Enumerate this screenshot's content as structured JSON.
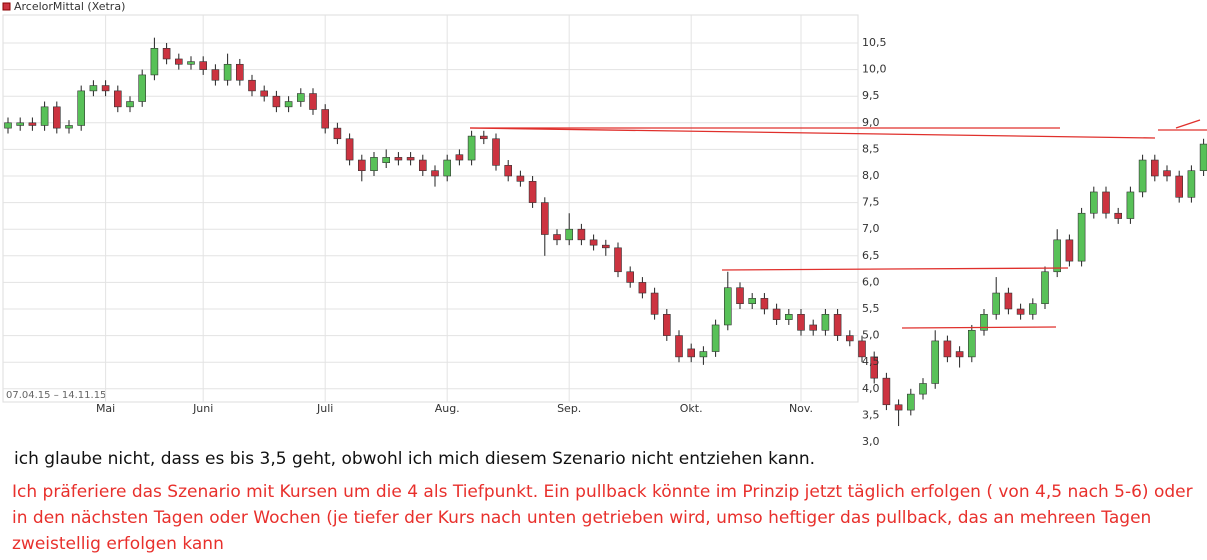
{
  "chart_data": {
    "type": "candlestick",
    "title": "ArcelorMittal (Xetra)",
    "date_range": "07.04.15 – 14.11.15",
    "categories": [
      null,
      null,
      null,
      null,
      null,
      null,
      null,
      null,
      "Mai",
      null,
      null,
      null,
      null,
      null,
      null,
      null,
      "Juni",
      null,
      null,
      null,
      null,
      null,
      null,
      null,
      null,
      null,
      "Juli",
      null,
      null,
      null,
      null,
      null,
      null,
      null,
      null,
      null,
      "Aug.",
      null,
      null,
      null,
      null,
      null,
      null,
      null,
      null,
      null,
      "Sep.",
      null,
      null,
      null,
      null,
      null,
      null,
      null,
      null,
      null,
      "Okt.",
      null,
      null,
      null,
      null,
      null,
      null,
      null,
      null,
      "Nov.",
      null,
      null,
      null,
      null,
      null,
      null,
      null,
      null,
      null,
      null,
      null,
      null,
      null,
      null,
      null,
      null,
      null,
      null,
      null,
      null,
      null,
      null,
      null,
      null,
      null,
      null,
      null,
      null,
      null,
      null,
      null,
      null,
      null
    ],
    "open": [
      8.9,
      8.95,
      9.0,
      8.95,
      9.3,
      8.9,
      8.95,
      9.6,
      9.7,
      9.6,
      9.3,
      9.4,
      9.9,
      10.4,
      10.2,
      10.1,
      10.15,
      10.0,
      9.8,
      10.1,
      9.8,
      9.6,
      9.5,
      9.3,
      9.4,
      9.55,
      9.25,
      8.9,
      8.7,
      8.3,
      8.1,
      8.25,
      8.35,
      8.35,
      8.3,
      8.1,
      8.0,
      8.4,
      8.3,
      8.75,
      8.7,
      8.2,
      8.0,
      7.9,
      7.5,
      6.9,
      6.8,
      7.0,
      6.8,
      6.7,
      6.65,
      6.2,
      6.0,
      5.8,
      5.4,
      5.0,
      4.75,
      4.6,
      4.7,
      5.2,
      5.9,
      5.6,
      5.7,
      5.5,
      5.3,
      5.4,
      5.2,
      5.1,
      5.4,
      5.0,
      4.9,
      4.6,
      4.2,
      3.7,
      3.6,
      3.9,
      4.1,
      4.9,
      4.7,
      4.6,
      5.1,
      5.4,
      5.8,
      5.5,
      5.4,
      5.6,
      6.2,
      6.8,
      6.4,
      7.3,
      7.7,
      7.3,
      7.2,
      7.7,
      8.3,
      8.1,
      8.0,
      7.6,
      8.1
    ],
    "high": [
      9.1,
      9.1,
      9.1,
      9.4,
      9.4,
      9.05,
      9.7,
      9.8,
      9.8,
      9.7,
      9.5,
      10.0,
      10.6,
      10.5,
      10.3,
      10.25,
      10.25,
      10.1,
      10.3,
      10.2,
      9.9,
      9.7,
      9.6,
      9.5,
      9.65,
      9.65,
      9.35,
      9.0,
      8.8,
      8.4,
      8.45,
      8.5,
      8.45,
      8.45,
      8.4,
      8.2,
      8.4,
      8.5,
      8.85,
      8.85,
      8.8,
      8.3,
      8.1,
      8.0,
      7.6,
      7.0,
      7.3,
      7.1,
      6.9,
      6.8,
      6.75,
      6.3,
      6.1,
      5.9,
      5.5,
      5.1,
      4.85,
      4.8,
      5.3,
      6.2,
      6.0,
      5.8,
      5.8,
      5.6,
      5.5,
      5.5,
      5.3,
      5.5,
      5.5,
      5.1,
      5.0,
      4.7,
      4.3,
      3.8,
      4.0,
      4.2,
      5.1,
      5.0,
      4.8,
      5.2,
      5.5,
      6.1,
      5.9,
      5.6,
      5.7,
      6.3,
      7.0,
      6.9,
      7.4,
      7.8,
      7.8,
      7.4,
      7.8,
      8.4,
      8.4,
      8.2,
      8.1,
      8.2,
      8.7
    ],
    "low": [
      8.8,
      8.85,
      8.85,
      8.85,
      8.8,
      8.8,
      8.85,
      9.5,
      9.5,
      9.2,
      9.2,
      9.3,
      9.8,
      10.1,
      10.0,
      10.0,
      9.9,
      9.7,
      9.7,
      9.7,
      9.5,
      9.4,
      9.2,
      9.2,
      9.3,
      9.15,
      8.8,
      8.6,
      8.2,
      7.9,
      8.0,
      8.15,
      8.2,
      8.2,
      8.0,
      7.8,
      7.9,
      8.2,
      8.2,
      8.6,
      8.1,
      7.9,
      7.8,
      7.4,
      6.5,
      6.7,
      6.7,
      6.7,
      6.6,
      6.5,
      6.1,
      5.9,
      5.7,
      5.3,
      4.9,
      4.5,
      4.5,
      4.45,
      4.6,
      5.1,
      5.5,
      5.5,
      5.4,
      5.2,
      5.2,
      5.0,
      5.0,
      5.0,
      4.9,
      4.8,
      4.5,
      4.1,
      3.6,
      3.3,
      3.5,
      3.8,
      4.0,
      4.5,
      4.4,
      4.5,
      5.0,
      5.3,
      5.4,
      5.3,
      5.3,
      5.5,
      6.1,
      6.3,
      6.3,
      7.2,
      7.2,
      7.1,
      7.1,
      7.6,
      7.9,
      7.9,
      7.5,
      7.5,
      8.0
    ],
    "close": [
      9.0,
      9.0,
      8.95,
      9.3,
      8.9,
      8.95,
      9.6,
      9.7,
      9.6,
      9.3,
      9.4,
      9.9,
      10.4,
      10.2,
      10.1,
      10.15,
      10.0,
      9.8,
      10.1,
      9.8,
      9.6,
      9.5,
      9.3,
      9.4,
      9.55,
      9.25,
      8.9,
      8.7,
      8.3,
      8.1,
      8.35,
      8.35,
      8.3,
      8.3,
      8.1,
      8.0,
      8.3,
      8.3,
      8.75,
      8.7,
      8.2,
      8.0,
      7.9,
      7.5,
      6.9,
      6.8,
      7.0,
      6.8,
      6.7,
      6.65,
      6.2,
      6.0,
      5.8,
      5.4,
      5.0,
      4.6,
      4.6,
      4.7,
      5.2,
      5.9,
      5.6,
      5.7,
      5.5,
      5.3,
      5.4,
      5.1,
      5.1,
      5.4,
      5.0,
      4.9,
      4.6,
      4.2,
      3.7,
      3.6,
      3.9,
      4.1,
      4.9,
      4.6,
      4.6,
      5.1,
      5.4,
      5.8,
      5.5,
      5.4,
      5.6,
      6.2,
      6.8,
      6.4,
      7.3,
      7.7,
      7.3,
      7.2,
      7.7,
      8.3,
      8.0,
      8.0,
      7.6,
      8.1,
      8.6
    ],
    "up_color": "#58c158",
    "down_color": "#cc3340",
    "ylim": [
      3.0,
      11.0
    ],
    "yticks": [
      {
        "value": 3.0,
        "label": "3,0"
      },
      {
        "value": 3.5,
        "label": "3,5"
      },
      {
        "value": 4.0,
        "label": "4,0"
      },
      {
        "value": 4.5,
        "label": "4,5"
      },
      {
        "value": 5.0,
        "label": "5,0"
      },
      {
        "value": 5.5,
        "label": "5,5"
      },
      {
        "value": 6.0,
        "label": "6,0"
      },
      {
        "value": 6.5,
        "label": "6,5"
      },
      {
        "value": 7.0,
        "label": "7,0"
      },
      {
        "value": 7.5,
        "label": "7,5"
      },
      {
        "value": 8.0,
        "label": "8,0"
      },
      {
        "value": 8.5,
        "label": "8,5"
      },
      {
        "value": 9.0,
        "label": "9,0"
      },
      {
        "value": 9.5,
        "label": "9,5"
      },
      {
        "value": 10.0,
        "label": "10,0"
      },
      {
        "value": 10.5,
        "label": "10,5"
      }
    ],
    "grid": true
  },
  "comments": [
    "ich glaube nicht, dass es bis 3,5 geht, obwohl ich mich diesem Szenario nicht entziehen kann.",
    "Ich präferiere das Szenario mit Kursen um die 4 als Tiefpunkt. Ein pullback könnte im Prinzip jetzt täglich erfolgen ( von 4,5 nach 5-6) oder in den nächsten Tagen oder Wochen (je tiefer der Kurs nach unten getrieben wird, umso heftiger das pullback, das an mehreen Tagen zweistellig erfolgen kann"
  ]
}
